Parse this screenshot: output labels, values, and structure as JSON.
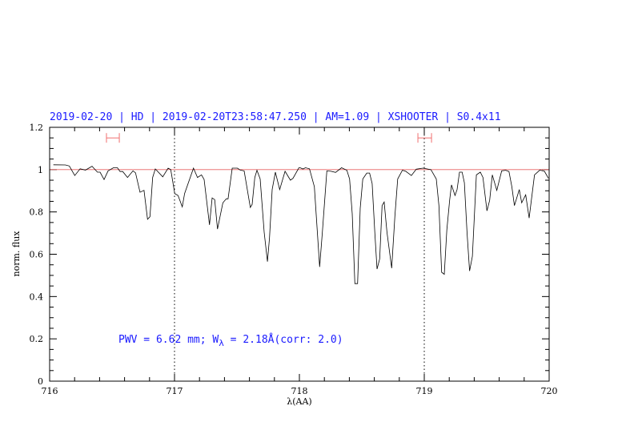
{
  "chart_data": {
    "type": "line",
    "title": "2019-02-20 | HD | 2019-02-20T23:58:47.250 | AM=1.09 | XSHOOTER | S0.4x11",
    "xlabel": "λ(AA)",
    "ylabel": "norm. flux",
    "xlim": [
      716,
      720
    ],
    "ylim": [
      0,
      1.2
    ],
    "xticks": [
      "716",
      "717",
      "718",
      "719",
      "720"
    ],
    "yticks": [
      "0",
      "0.2",
      "0.4",
      "0.6",
      "0.8",
      "1",
      "1.2"
    ],
    "grid": false,
    "reference_line": {
      "y": 1.0,
      "color": "#e86060"
    },
    "vertical_dotted_lines": [
      717,
      719
    ],
    "ranges": [
      {
        "x": [
          716.455,
          716.558
        ],
        "y": 1.15,
        "color": "#f07070"
      },
      {
        "x": [
          718.949,
          719.058
        ],
        "y": 1.15,
        "color": "#f07070"
      }
    ],
    "annotation": {
      "prefix": "PWV = 6.62 mm; W",
      "subscript": "λ",
      "suffix": " = 2.18Å(corr: 2.0)",
      "color": "#1a1aff"
    },
    "series": [
      {
        "color": "#000000",
        "points": [
          [
            716.03,
            1.023
          ],
          [
            716.126,
            1.022
          ],
          [
            716.158,
            1.017
          ],
          [
            716.201,
            0.972
          ],
          [
            716.244,
            1.004
          ],
          [
            716.287,
            0.998
          ],
          [
            716.34,
            1.016
          ],
          [
            716.383,
            0.988
          ],
          [
            716.404,
            0.988
          ],
          [
            716.436,
            0.953
          ],
          [
            716.468,
            0.994
          ],
          [
            716.511,
            1.009
          ],
          [
            716.543,
            1.009
          ],
          [
            716.564,
            0.991
          ],
          [
            716.585,
            0.991
          ],
          [
            716.624,
            0.963
          ],
          [
            716.667,
            0.994
          ],
          [
            716.688,
            0.985
          ],
          [
            716.724,
            0.893
          ],
          [
            716.756,
            0.902
          ],
          [
            716.784,
            0.765
          ],
          [
            716.803,
            0.777
          ],
          [
            716.825,
            0.963
          ],
          [
            716.846,
            1.003
          ],
          [
            716.906,
            0.966
          ],
          [
            716.949,
            1.007
          ],
          [
            716.97,
            1.0
          ],
          [
            717.002,
            0.887
          ],
          [
            717.028,
            0.878
          ],
          [
            717.062,
            0.824
          ],
          [
            717.081,
            0.887
          ],
          [
            717.152,
            1.007
          ],
          [
            717.184,
            0.963
          ],
          [
            717.216,
            0.975
          ],
          [
            717.237,
            0.953
          ],
          [
            717.28,
            0.739
          ],
          [
            717.301,
            0.866
          ],
          [
            717.322,
            0.858
          ],
          [
            717.344,
            0.719
          ],
          [
            717.387,
            0.843
          ],
          [
            717.415,
            0.862
          ],
          [
            717.429,
            0.862
          ],
          [
            717.462,
            1.007
          ],
          [
            717.504,
            1.007
          ],
          [
            717.526,
            0.998
          ],
          [
            717.558,
            0.994
          ],
          [
            717.607,
            0.821
          ],
          [
            717.622,
            0.836
          ],
          [
            717.643,
            0.963
          ],
          [
            717.66,
            0.997
          ],
          [
            717.686,
            0.956
          ],
          [
            717.718,
            0.704
          ],
          [
            717.744,
            0.565
          ],
          [
            717.761,
            0.679
          ],
          [
            717.782,
            0.906
          ],
          [
            717.808,
            0.988
          ],
          [
            717.842,
            0.906
          ],
          [
            717.885,
            0.992
          ],
          [
            717.928,
            0.95
          ],
          [
            717.949,
            0.959
          ],
          [
            717.996,
            1.009
          ],
          [
            718.006,
            1.009
          ],
          [
            718.028,
            1.003
          ],
          [
            718.049,
            1.009
          ],
          [
            718.081,
            1.004
          ],
          [
            718.12,
            0.919
          ],
          [
            718.162,
            0.54
          ],
          [
            718.184,
            0.704
          ],
          [
            718.22,
            0.994
          ],
          [
            718.252,
            0.992
          ],
          [
            718.29,
            0.987
          ],
          [
            718.338,
            1.009
          ],
          [
            718.38,
            0.997
          ],
          [
            718.402,
            0.956
          ],
          [
            718.423,
            0.792
          ],
          [
            718.444,
            0.461
          ],
          [
            718.466,
            0.461
          ],
          [
            718.487,
            0.818
          ],
          [
            718.508,
            0.956
          ],
          [
            718.54,
            0.984
          ],
          [
            718.562,
            0.984
          ],
          [
            718.583,
            0.934
          ],
          [
            718.604,
            0.704
          ],
          [
            718.622,
            0.53
          ],
          [
            718.643,
            0.578
          ],
          [
            718.662,
            0.83
          ],
          [
            718.679,
            0.847
          ],
          [
            718.701,
            0.704
          ],
          [
            718.739,
            0.534
          ],
          [
            718.765,
            0.78
          ],
          [
            718.787,
            0.956
          ],
          [
            718.825,
            0.997
          ],
          [
            718.851,
            0.992
          ],
          [
            718.897,
            0.972
          ],
          [
            718.936,
            1.002
          ],
          [
            718.989,
            1.007
          ],
          [
            719.053,
            1.0
          ],
          [
            719.096,
            0.956
          ],
          [
            719.117,
            0.83
          ],
          [
            719.139,
            0.515
          ],
          [
            719.16,
            0.505
          ],
          [
            719.181,
            0.716
          ],
          [
            719.203,
            0.855
          ],
          [
            719.218,
            0.928
          ],
          [
            719.246,
            0.878
          ],
          [
            719.263,
            0.906
          ],
          [
            719.282,
            0.988
          ],
          [
            719.303,
            0.988
          ],
          [
            719.321,
            0.938
          ],
          [
            719.342,
            0.704
          ],
          [
            719.363,
            0.521
          ],
          [
            719.385,
            0.59
          ],
          [
            719.417,
            0.975
          ],
          [
            719.449,
            0.988
          ],
          [
            719.47,
            0.963
          ],
          [
            719.502,
            0.805
          ],
          [
            719.524,
            0.855
          ],
          [
            719.545,
            0.975
          ],
          [
            719.581,
            0.902
          ],
          [
            719.62,
            0.994
          ],
          [
            719.652,
            0.997
          ],
          [
            719.678,
            0.991
          ],
          [
            719.701,
            0.919
          ],
          [
            719.722,
            0.83
          ],
          [
            719.761,
            0.906
          ],
          [
            719.78,
            0.843
          ],
          [
            719.812,
            0.881
          ],
          [
            719.84,
            0.771
          ],
          [
            719.883,
            0.975
          ],
          [
            719.925,
            0.998
          ],
          [
            719.962,
            0.992
          ],
          [
            719.994,
            0.959
          ]
        ]
      }
    ]
  }
}
